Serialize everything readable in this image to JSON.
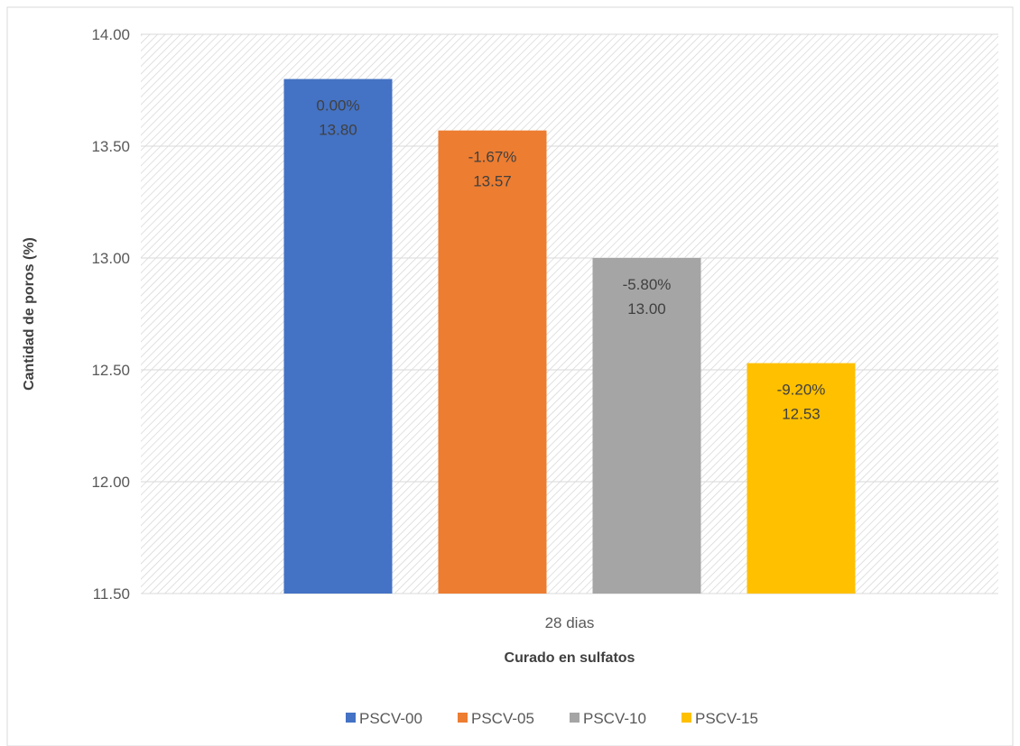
{
  "chart_data": {
    "type": "bar",
    "title": "",
    "xlabel": "Curado en sulfatos",
    "ylabel": "Cantidad de poros (%)",
    "categories": [
      "28 dias"
    ],
    "ylim": [
      11.5,
      14.0
    ],
    "yticks": [
      "14.00",
      "13.50",
      "13.00",
      "12.50",
      "12.00",
      "11.50"
    ],
    "ytick_values": [
      14.0,
      13.5,
      13.0,
      12.5,
      12.0,
      11.5
    ],
    "grid": true,
    "legend_position": "bottom",
    "series": [
      {
        "name": "PSCV-00",
        "values": [
          13.8
        ],
        "value_label": "13.80",
        "pct_label": "0.00%",
        "color": "#4472C4"
      },
      {
        "name": "PSCV-05",
        "values": [
          13.57
        ],
        "value_label": "13.57",
        "pct_label": "-1.67%",
        "color": "#ED7D31"
      },
      {
        "name": "PSCV-10",
        "values": [
          13.0
        ],
        "value_label": "13.00",
        "pct_label": "-5.80%",
        "color": "#A5A5A5"
      },
      {
        "name": "PSCV-15",
        "values": [
          12.53
        ],
        "value_label": "12.53",
        "pct_label": "-9.20%",
        "color": "#FFC000"
      }
    ],
    "plot_background": "hatched-gray",
    "gridline_color": "#d9d9d9"
  }
}
